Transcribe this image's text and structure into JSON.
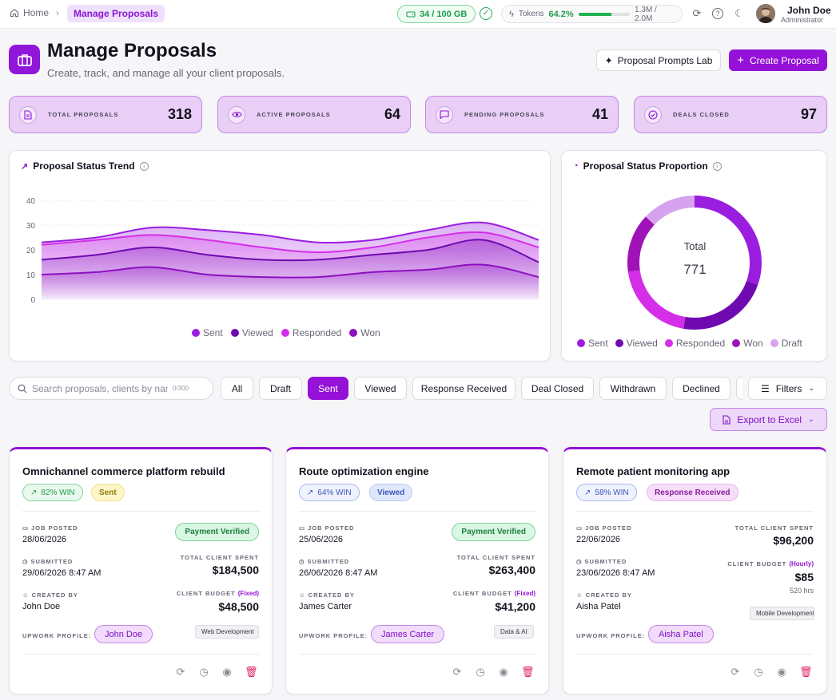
{
  "breadcrumb": {
    "home": "Home",
    "current": "Manage Proposals"
  },
  "topbar": {
    "storage": "34 / 100 GB",
    "tokens_label": "Tokens",
    "tokens_pct": "64.2%",
    "tokens_fraction": 0.642,
    "tokens_count": "1.3M / 2.0M",
    "user_name": "John Doe",
    "user_role": "Administrator"
  },
  "header": {
    "title": "Manage Proposals",
    "subtitle": "Create, track, and manage all your client proposals.",
    "lab_button": "Proposal Prompts Lab",
    "create_button": "Create Proposal"
  },
  "stats": [
    {
      "label": "TOTAL PROPOSALS",
      "value": "318",
      "icon": "document-icon"
    },
    {
      "label": "ACTIVE PROPOSALS",
      "value": "64",
      "icon": "eye-icon"
    },
    {
      "label": "PENDING PROPOSALS",
      "value": "41",
      "icon": "chat-icon"
    },
    {
      "label": "DEALS CLOSED",
      "value": "97",
      "icon": "check-circle-icon"
    }
  ],
  "trend": {
    "title": "Proposal Status Trend",
    "legend": [
      "Sent",
      "Viewed",
      "Responded",
      "Won"
    ]
  },
  "proportion": {
    "title": "Proposal Status Proportion",
    "total_label": "Total",
    "total_value": "771",
    "legend": [
      "Sent",
      "Viewed",
      "Responded",
      "Won",
      "Draft"
    ]
  },
  "chart_data": [
    {
      "type": "area",
      "title": "Proposal Status Trend",
      "x": [
        0,
        1,
        2,
        3,
        4,
        5,
        6,
        7,
        8,
        9
      ],
      "ylim": [
        0,
        40
      ],
      "yticks": [
        "0",
        "10",
        "20",
        "30",
        "40"
      ],
      "grid": true,
      "legend_position": "bottom",
      "series": [
        {
          "name": "Sent",
          "color": "#9b1de0",
          "values": [
            23,
            25,
            29,
            28,
            26,
            23,
            24,
            28,
            31,
            24
          ]
        },
        {
          "name": "Viewed",
          "color": "#6f0ab0",
          "values": [
            16,
            18,
            21,
            18,
            16,
            16,
            18,
            20,
            24,
            15
          ]
        },
        {
          "name": "Responded",
          "color": "#d42ee8",
          "values": [
            22,
            24,
            26,
            24,
            21,
            19,
            21,
            25,
            27,
            21
          ]
        },
        {
          "name": "Won",
          "color": "#8d0fbf",
          "values": [
            10,
            11,
            13,
            10,
            9,
            9,
            11,
            12,
            14,
            9
          ]
        }
      ]
    },
    {
      "type": "pie",
      "title": "Proposal Status Proportion",
      "legend_position": "bottom",
      "total": 771,
      "categories": [
        "Sent",
        "Viewed",
        "Responded",
        "Won",
        "Draft"
      ],
      "colors": [
        "#9b1de0",
        "#6f0ab0",
        "#d42ee8",
        "#9f12b8",
        "#d7a2ee"
      ],
      "values": [
        234,
        172,
        155,
        110,
        100
      ]
    }
  ],
  "search": {
    "placeholder": "Search proposals, clients by name",
    "count": "0/300"
  },
  "filters": [
    "All",
    "Draft",
    "Sent",
    "Viewed",
    "Response Received",
    "Deal Closed",
    "Withdrawn",
    "Declined"
  ],
  "filters_button": "Filters",
  "export_button": "Export to Excel",
  "labels": {
    "job_posted": "JOB POSTED",
    "submitted": "SUBMITTED",
    "created_by": "CREATED BY",
    "total_spent": "TOTAL CLIENT SPENT",
    "client_budget": "CLIENT BUDGET",
    "upwork_profile": "UPWORK PROFILE:",
    "payment_verified": "Payment Verified"
  },
  "cards": [
    {
      "title": "Omnichannel commerce platform rebuild",
      "win": "82% WIN",
      "status": "Sent",
      "job_posted": "28/06/2026",
      "submitted": "29/06/2026 8:47 AM",
      "created_by": "John Doe",
      "total_spent": "$184,500",
      "budget_type": "(Fixed)",
      "budget": "$48,500",
      "profile": "John Doe",
      "tag": "Web Development"
    },
    {
      "title": "Route optimization engine",
      "win": "64% WIN",
      "status": "Viewed",
      "job_posted": "25/06/2026",
      "submitted": "26/06/2026 8:47 AM",
      "created_by": "James Carter",
      "total_spent": "$263,400",
      "budget_type": "(Fixed)",
      "budget": "$41,200",
      "profile": "James Carter",
      "tag": "Data & AI"
    },
    {
      "title": "Remote patient monitoring app",
      "win": "58% WIN",
      "status": "Response Received",
      "job_posted": "22/06/2026",
      "submitted": "23/06/2026 8:47 AM",
      "created_by": "Aisha Patel",
      "total_spent": "$96,200",
      "budget_type": "(Hourly)",
      "budget": "$85",
      "hours": "520 hrs",
      "profile": "Aisha Patel",
      "tag": "Mobile Development"
    }
  ]
}
